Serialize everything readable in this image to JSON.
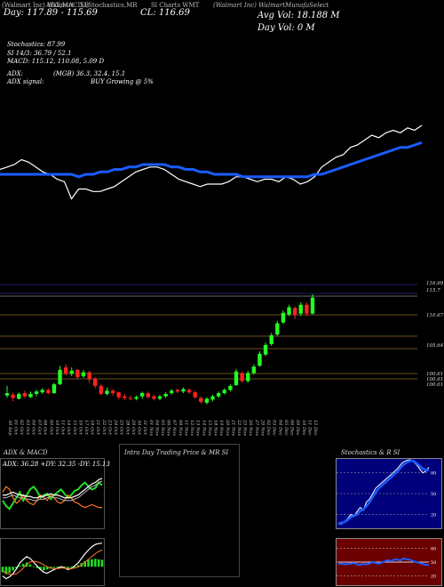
{
  "header": {
    "line1": [
      "(Walmart Inc) Walmart",
      "ADX,MACD,B",
      "Sl,Stochastics,MR",
      "Sl Charts WMT"
    ],
    "line1_right": "(Walmart Inc) WalmartMunafaSelect",
    "day_range": "Day: 117.89 - 115.69",
    "close": "CL: 116.69",
    "avg_vol": "Avg Vol: 18.188  M",
    "day_vol": "Day Vol: 0  M",
    "stochastics": "Stochastics: 87.99",
    "si": "SI 14/3: 36.79 / 52.1",
    "macd": "MACD: 115.12, 110.08, 5.09 D",
    "adx": "ADX:",
    "adx_vals": "(MGB) 36.3, 32.4, 15.1",
    "adx_signal": "ADX  signal:",
    "adx_signal_val": "BUY Growing @ 5%"
  },
  "chart_data": [
    {
      "type": "line",
      "title": "",
      "series": [
        {
          "values": [
            88,
            89,
            90,
            92,
            91,
            89,
            87,
            86,
            84,
            83,
            76,
            80,
            80,
            79,
            79,
            80,
            81,
            83,
            85,
            87,
            88,
            89,
            89,
            88,
            86,
            84,
            83,
            82,
            81,
            82,
            82,
            82,
            83,
            85,
            85,
            84,
            83,
            84,
            84,
            83,
            85,
            84,
            82,
            83,
            85,
            89,
            91,
            93,
            94,
            97,
            98,
            100,
            102,
            101,
            103,
            104,
            103,
            105,
            104,
            106
          ]
        },
        {
          "values": [
            86,
            86,
            86,
            86,
            86,
            86,
            86,
            86,
            86,
            86,
            86,
            85,
            86,
            86,
            87,
            87,
            88,
            88,
            89,
            89,
            90,
            90,
            90,
            90,
            89,
            89,
            88,
            88,
            87,
            87,
            86,
            86,
            86,
            86,
            85,
            85,
            85,
            85,
            85,
            85,
            85,
            85,
            85,
            85,
            86,
            86,
            87,
            88,
            89,
            90,
            91,
            92,
            93,
            94,
            95,
            96,
            97,
            97,
            98,
            99
          ]
        }
      ]
    },
    {
      "type": "candlestick",
      "title": "",
      "categories": [
        "30 Sep",
        "01 Oct",
        "02 Oct",
        "03 Oct",
        "04 Oct",
        "07 Oct",
        "08 Oct",
        "09 Oct",
        "10 Oct",
        "11 Oct",
        "14 Oct",
        "15 Oct",
        "16 Oct",
        "17 Oct",
        "18 Oct",
        "21 Oct",
        "22 Oct",
        "23 Oct",
        "24 Oct",
        "25 Oct",
        "28 Oct",
        "29 Oct",
        "30 Oct",
        "31 Oct",
        "01 Nov",
        "04 Nov",
        "05 Nov",
        "06 Nov",
        "07 Nov",
        "08 Nov",
        "11 Nov",
        "12 Nov",
        "13 Nov",
        "14 Nov",
        "15 Nov",
        "18 Nov",
        "19 Nov",
        "20 Nov",
        "21 Nov",
        "22 Nov",
        "25 Nov",
        "26 Nov",
        "27 Nov",
        "29 Nov",
        "02 Dec",
        "03 Dec",
        "04 Dec",
        "05 Dec",
        "06 Dec",
        "09 Dec",
        "10 Dec",
        "11 Dec",
        "12 Dec"
      ],
      "candles": [
        [
          100.3,
          100.6,
          101.5,
          100
        ],
        [
          100.4,
          100.0,
          100.7,
          99.6
        ],
        [
          99.9,
          100.5,
          100.7,
          99.8
        ],
        [
          100.6,
          100.2,
          100.9,
          100
        ],
        [
          100.1,
          100.5,
          100.8,
          100
        ],
        [
          100.5,
          100.8,
          101,
          100.2
        ],
        [
          100.7,
          101.0,
          101.2,
          100.5
        ],
        [
          101.0,
          100.6,
          101.2,
          100.4
        ],
        [
          100.6,
          101.7,
          101.9,
          100.5
        ],
        [
          101.7,
          103.5,
          104,
          101.6
        ],
        [
          103.8,
          103.0,
          104.2,
          102.8
        ],
        [
          103.0,
          103.4,
          103.8,
          102.7
        ],
        [
          103.5,
          102.6,
          103.6,
          102.3
        ],
        [
          102.7,
          103.2,
          103.5,
          102.5
        ],
        [
          103.2,
          102.3,
          103.4,
          101.9
        ],
        [
          102.4,
          101.5,
          102.6,
          101.2
        ],
        [
          101.5,
          100.5,
          101.7,
          100.3
        ],
        [
          100.5,
          100.9,
          101.3,
          100.3
        ],
        [
          100.9,
          100.6,
          101.1,
          100.3
        ],
        [
          100.7,
          100.1,
          100.8,
          99.8
        ],
        [
          100.2,
          100.0,
          100.5,
          99.7
        ],
        [
          100.0,
          99.9,
          100.3,
          99.7
        ],
        [
          99.9,
          100.1,
          100.3,
          99.7
        ],
        [
          100.2,
          100.6,
          100.8,
          99.9
        ],
        [
          100.6,
          100.1,
          100.8,
          99.9
        ],
        [
          100.2,
          99.9,
          100.4,
          99.7
        ],
        [
          99.9,
          100.2,
          100.4,
          99.7
        ],
        [
          100.2,
          100.5,
          100.7,
          100
        ],
        [
          100.6,
          100.9,
          101.1,
          100.4
        ],
        [
          101.0,
          100.8,
          101.2,
          100.6
        ],
        [
          100.8,
          101.1,
          101.3,
          100.6
        ],
        [
          101.0,
          100.7,
          101.2,
          100.5
        ],
        [
          100.7,
          100.1,
          100.9,
          99.9
        ],
        [
          100.0,
          99.5,
          100.2,
          99.3
        ],
        [
          99.4,
          99.9,
          100.1,
          99.2
        ],
        [
          99.8,
          100.2,
          100.4,
          99.6
        ],
        [
          100.2,
          100.6,
          100.8,
          100
        ],
        [
          100.6,
          101.0,
          101.2,
          100.4
        ],
        [
          101.0,
          101.5,
          101.7,
          100.8
        ],
        [
          101.6,
          103.3,
          103.6,
          101.5
        ],
        [
          103.1,
          102.1,
          103.3,
          101.9
        ],
        [
          102.1,
          103.1,
          103.4,
          101.9
        ],
        [
          103.1,
          103.9,
          104.2,
          102.9
        ],
        [
          104.0,
          105.5,
          105.8,
          103.9
        ],
        [
          105.4,
          106.6,
          106.9,
          105.2
        ],
        [
          106.7,
          107.8,
          108.1,
          106.5
        ],
        [
          107.9,
          109.3,
          109.6,
          107.7
        ],
        [
          109.4,
          110.6,
          110.9,
          109.2
        ],
        [
          110.4,
          111.3,
          111.6,
          110.2
        ],
        [
          111.2,
          110.3,
          111.4,
          109.8
        ],
        [
          110.5,
          111.6,
          111.9,
          110.2
        ],
        [
          111.6,
          110.5,
          111.9,
          110.2
        ],
        [
          110.5,
          112.5,
          112.9,
          110.4
        ]
      ],
      "price_labels": [
        "116.69",
        "115.7",
        "110.67",
        "105.64",
        "100.61",
        "100.61",
        "100.61"
      ]
    },
    {
      "type": "line",
      "title": "ADX  & MACD",
      "annotation": "ADX: 36.28  +DY: 32.35  -DY: 15.13",
      "series": [
        {
          "name": "+DY",
          "values": [
            20,
            16,
            14,
            18,
            22,
            26,
            20,
            24,
            28,
            30,
            27,
            22,
            24,
            25,
            21,
            24,
            26,
            28,
            25,
            22,
            24,
            27,
            28,
            31,
            33,
            30,
            28,
            29,
            33,
            31
          ]
        },
        {
          "name": "-DY",
          "values": [
            26,
            30,
            28,
            22,
            18,
            20,
            24,
            20,
            18,
            17,
            20,
            24,
            22,
            20,
            24,
            22,
            19,
            18,
            20,
            24,
            22,
            19,
            18,
            16,
            15,
            16,
            17,
            16,
            15,
            15
          ]
        },
        {
          "name": "ADX",
          "values": [
            24,
            24,
            25,
            26,
            25,
            24,
            24,
            23,
            23,
            22,
            22,
            23,
            23,
            24,
            25,
            24,
            24,
            23,
            22,
            22,
            22,
            23,
            24,
            26,
            28,
            30,
            32,
            33,
            35,
            36
          ]
        }
      ]
    },
    {
      "type": "bar",
      "title": "",
      "values": [
        -1.2,
        -1.6,
        -1.3,
        -0.8,
        -0.4,
        0.2,
        0.6,
        0.9,
        0.5,
        0.1,
        -0.3,
        -0.6,
        -0.8,
        -0.6,
        -0.4,
        -0.2,
        -0.1,
        0.1,
        -0.1,
        -0.3,
        -0.2,
        0,
        0.3,
        0.8,
        1.2,
        1.5,
        1.6,
        1.7,
        1.6,
        1.5
      ],
      "series": [
        {
          "name": "MACD",
          "values": [
            -2,
            -2.6,
            -2.2,
            -1.5,
            -0.5,
            0.8,
            1.6,
            2.2,
            1.8,
            1.0,
            0.2,
            -0.6,
            -1.2,
            -1.4,
            -1.0,
            -0.6,
            -0.3,
            0,
            -0.2,
            -0.6,
            -0.4,
            0.2,
            0.8,
            1.8,
            2.8,
            3.6,
            4.3,
            4.8,
            5.0,
            5.1
          ]
        },
        {
          "name": "Signal",
          "values": [
            -1,
            -1.3,
            -1.6,
            -1.7,
            -1.5,
            -1.0,
            -0.3,
            0.5,
            1.0,
            1.2,
            1.1,
            0.8,
            0.4,
            0,
            -0.3,
            -0.4,
            -0.4,
            -0.3,
            -0.3,
            -0.4,
            -0.4,
            -0.3,
            -0.1,
            0.4,
            1.0,
            1.6,
            2.2,
            2.8,
            3.3,
            3.6
          ]
        }
      ]
    },
    {
      "type": "line",
      "title": "Intra  Day Trading Price  & MR           SI",
      "series": []
    },
    {
      "type": "line",
      "title": "Stochastics & R              SI",
      "ylim": [
        0,
        100
      ],
      "tick_labels": [
        "80",
        "50",
        "20"
      ],
      "series": [
        {
          "values": [
            8,
            6,
            10,
            14,
            20,
            18,
            24,
            30,
            26,
            38,
            42,
            50,
            58,
            62,
            66,
            70,
            74,
            78,
            82,
            86,
            92,
            96,
            98,
            99,
            96,
            92,
            86,
            80,
            82,
            88
          ]
        },
        {
          "values": [
            6,
            8,
            9,
            12,
            16,
            18,
            20,
            25,
            27,
            32,
            38,
            45,
            52,
            58,
            62,
            66,
            70,
            74,
            78,
            82,
            88,
            92,
            95,
            97,
            97,
            94,
            90,
            86,
            84,
            84
          ]
        }
      ]
    },
    {
      "type": "line",
      "title": "",
      "ylim": [
        0,
        100
      ],
      "tick_labels": [
        "80",
        "50",
        "20"
      ],
      "series": [
        {
          "values": [
            46,
            47,
            45,
            46,
            47,
            48,
            45,
            44,
            46,
            45,
            47,
            50,
            48,
            47,
            49,
            52,
            54,
            52,
            56,
            55,
            54,
            58,
            56,
            55,
            52,
            50,
            48,
            46,
            44,
            44
          ]
        },
        {
          "values": [
            50,
            50,
            50,
            50,
            50,
            50,
            50,
            50,
            50,
            50,
            50,
            50,
            50,
            50,
            50,
            50,
            50,
            50,
            50,
            50,
            50,
            50,
            50,
            50,
            50,
            50,
            50,
            50,
            50,
            50
          ]
        }
      ]
    }
  ]
}
